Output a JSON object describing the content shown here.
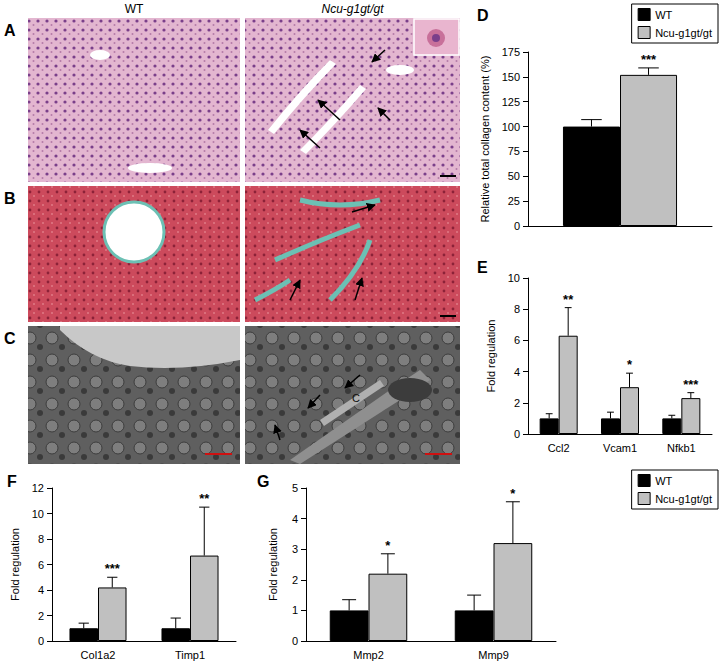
{
  "figure": {
    "column_headers": [
      "WT",
      "Ncu-g1gt/gt"
    ],
    "image_panels": [
      {
        "label": "A"
      },
      {
        "label": "B"
      },
      {
        "label": "C",
        "marker_text": "C"
      }
    ]
  },
  "chart_data": [
    {
      "panel": "D",
      "type": "bar",
      "categories": [
        null
      ],
      "y_label": "Relative total collagen content (%)",
      "ylim": [
        0,
        175
      ],
      "yticks": [
        0,
        25,
        50,
        75,
        100,
        125,
        150,
        175
      ],
      "grid": false,
      "legend": "top-right",
      "tick_labels": "y",
      "series": [
        {
          "name": "WT",
          "color": "#000000",
          "values": [
            100
          ],
          "errors": [
            7
          ],
          "significance": [
            null
          ]
        },
        {
          "name": "Ncu-g1gt/gt",
          "color": "#c0c0c0",
          "values": [
            152
          ],
          "errors": [
            7
          ],
          "significance": [
            "***"
          ]
        }
      ]
    },
    {
      "panel": "E",
      "type": "bar",
      "categories": [
        "Ccl2",
        "Vcam1",
        "Nfkb1"
      ],
      "y_label": "Fold regulation",
      "ylim": [
        0,
        10
      ],
      "yticks": [
        0,
        2,
        4,
        6,
        8,
        10
      ],
      "grid": false,
      "series": [
        {
          "name": "WT",
          "color": "#000000",
          "values": [
            1,
            1,
            1
          ],
          "errors": [
            0.3,
            0.4,
            0.2
          ],
          "significance": [
            null,
            null,
            null
          ]
        },
        {
          "name": "Ncu-g1gt/gt",
          "color": "#c0c0c0",
          "values": [
            6.3,
            3.0,
            2.3
          ],
          "errors": [
            1.8,
            0.9,
            0.35
          ],
          "significance": [
            "**",
            "*",
            "***"
          ]
        }
      ]
    },
    {
      "panel": "F",
      "type": "bar",
      "categories": [
        "Col1a2",
        "Timp1"
      ],
      "y_label": "Fold regulation",
      "ylim": [
        0,
        12
      ],
      "yticks": [
        0,
        2,
        4,
        6,
        8,
        10,
        12
      ],
      "grid": false,
      "series": [
        {
          "name": "WT",
          "color": "#000000",
          "values": [
            1,
            1
          ],
          "errors": [
            0.4,
            0.8
          ],
          "significance": [
            null,
            null
          ]
        },
        {
          "name": "Ncu-g1gt/gt",
          "color": "#c0c0c0",
          "values": [
            4.2,
            6.7
          ],
          "errors": [
            0.8,
            3.8
          ],
          "significance": [
            "***",
            "**"
          ]
        }
      ]
    },
    {
      "panel": "G",
      "type": "bar",
      "categories": [
        "Mmp2",
        "Mmp9"
      ],
      "y_label": "Fold regulation",
      "ylim": [
        0,
        5
      ],
      "yticks": [
        0,
        1,
        2,
        3,
        4,
        5
      ],
      "grid": false,
      "legend": "top-right",
      "series": [
        {
          "name": "WT",
          "color": "#000000",
          "values": [
            1,
            1
          ],
          "errors": [
            0.35,
            0.5
          ],
          "significance": [
            null,
            null
          ]
        },
        {
          "name": "Ncu-g1gt/gt",
          "color": "#c0c0c0",
          "values": [
            2.2,
            3.2
          ],
          "errors": [
            0.65,
            1.35
          ],
          "significance": [
            "*",
            "*"
          ]
        }
      ]
    }
  ]
}
